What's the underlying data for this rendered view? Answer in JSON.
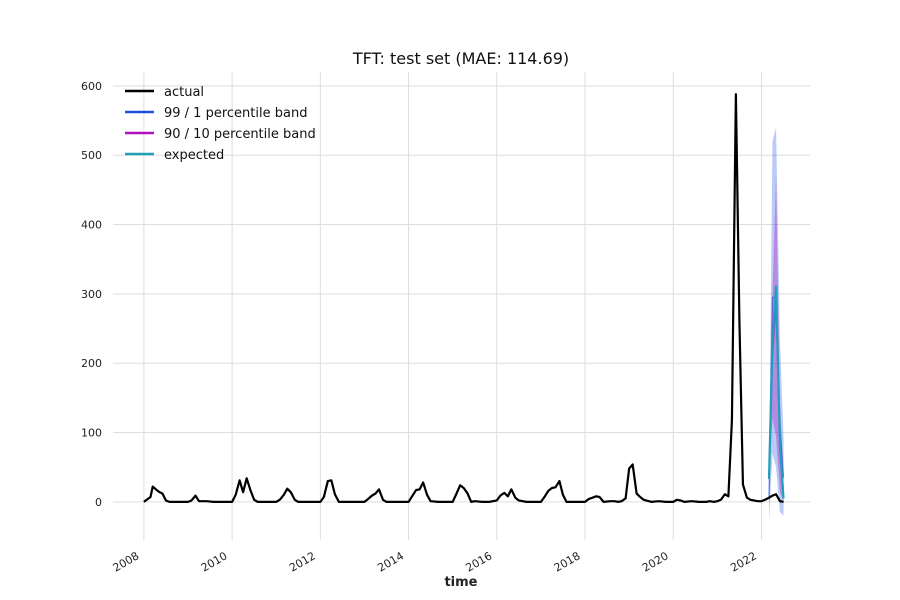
{
  "chart_data": {
    "type": "line",
    "title": "TFT: test set (MAE: 114.69)",
    "xlabel": "time",
    "ylabel": "",
    "xlim": [
      2007.3,
      2023.1
    ],
    "ylim": [
      -55,
      620
    ],
    "x_ticks": [
      {
        "value": 2008,
        "label": "2008"
      },
      {
        "value": 2010,
        "label": "2010"
      },
      {
        "value": 2012,
        "label": "2012"
      },
      {
        "value": 2014,
        "label": "2014"
      },
      {
        "value": 2016,
        "label": "2016"
      },
      {
        "value": 2018,
        "label": "2018"
      },
      {
        "value": 2020,
        "label": "2020"
      },
      {
        "value": 2022,
        "label": "2022"
      }
    ],
    "y_ticks": [
      {
        "value": 0,
        "label": "0"
      },
      {
        "value": 100,
        "label": "100"
      },
      {
        "value": 200,
        "label": "200"
      },
      {
        "value": 300,
        "label": "300"
      },
      {
        "value": 400,
        "label": "400"
      },
      {
        "value": 500,
        "label": "500"
      },
      {
        "value": 600,
        "label": "600"
      }
    ],
    "grid": true,
    "legend_position": "top-left",
    "legend": [
      {
        "label": "actual",
        "color": "#000000"
      },
      {
        "label": "99 / 1 percentile band",
        "color": "#1f4fe0"
      },
      {
        "label": "90 / 10 percentile band",
        "color": "#b010c0"
      },
      {
        "label": "expected",
        "color": "#20a0b8"
      }
    ],
    "series": [
      {
        "name": "actual",
        "color": "#000000",
        "points": [
          [
            2008.0,
            0
          ],
          [
            2008.15,
            7
          ],
          [
            2008.2,
            22
          ],
          [
            2008.33,
            15
          ],
          [
            2008.42,
            12
          ],
          [
            2008.5,
            2
          ],
          [
            2008.58,
            0
          ],
          [
            2008.75,
            0
          ],
          [
            2009.0,
            0
          ],
          [
            2009.08,
            2
          ],
          [
            2009.17,
            9
          ],
          [
            2009.25,
            1
          ],
          [
            2009.42,
            1
          ],
          [
            2009.58,
            0
          ],
          [
            2009.75,
            0
          ],
          [
            2010.0,
            0
          ],
          [
            2010.08,
            10
          ],
          [
            2010.17,
            31
          ],
          [
            2010.25,
            14
          ],
          [
            2010.33,
            34
          ],
          [
            2010.42,
            16
          ],
          [
            2010.5,
            3
          ],
          [
            2010.58,
            0
          ],
          [
            2010.75,
            0
          ],
          [
            2011.0,
            0
          ],
          [
            2011.08,
            3
          ],
          [
            2011.17,
            10
          ],
          [
            2011.25,
            19
          ],
          [
            2011.33,
            14
          ],
          [
            2011.42,
            3
          ],
          [
            2011.5,
            0
          ],
          [
            2011.67,
            0
          ],
          [
            2011.83,
            0
          ],
          [
            2012.0,
            0
          ],
          [
            2012.08,
            7
          ],
          [
            2012.17,
            30
          ],
          [
            2012.25,
            31
          ],
          [
            2012.33,
            11
          ],
          [
            2012.42,
            0
          ],
          [
            2012.58,
            0
          ],
          [
            2012.75,
            0
          ],
          [
            2013.0,
            0
          ],
          [
            2013.08,
            4
          ],
          [
            2013.17,
            9
          ],
          [
            2013.25,
            12
          ],
          [
            2013.33,
            18
          ],
          [
            2013.42,
            3
          ],
          [
            2013.5,
            0
          ],
          [
            2013.75,
            0
          ],
          [
            2014.0,
            0
          ],
          [
            2014.08,
            8
          ],
          [
            2014.17,
            17
          ],
          [
            2014.25,
            18
          ],
          [
            2014.33,
            28
          ],
          [
            2014.42,
            10
          ],
          [
            2014.5,
            1
          ],
          [
            2014.67,
            0
          ],
          [
            2014.83,
            0
          ],
          [
            2015.0,
            0
          ],
          [
            2015.08,
            11
          ],
          [
            2015.17,
            24
          ],
          [
            2015.25,
            20
          ],
          [
            2015.33,
            13
          ],
          [
            2015.42,
            0
          ],
          [
            2015.5,
            1
          ],
          [
            2015.67,
            0
          ],
          [
            2015.83,
            0
          ],
          [
            2016.0,
            2
          ],
          [
            2016.08,
            9
          ],
          [
            2016.17,
            13
          ],
          [
            2016.25,
            8
          ],
          [
            2016.33,
            18
          ],
          [
            2016.42,
            6
          ],
          [
            2016.5,
            2
          ],
          [
            2016.67,
            0
          ],
          [
            2016.83,
            0
          ],
          [
            2017.0,
            0
          ],
          [
            2017.08,
            7
          ],
          [
            2017.17,
            16
          ],
          [
            2017.25,
            20
          ],
          [
            2017.33,
            21
          ],
          [
            2017.42,
            30
          ],
          [
            2017.5,
            10
          ],
          [
            2017.58,
            0
          ],
          [
            2017.75,
            0
          ],
          [
            2018.0,
            0
          ],
          [
            2018.08,
            4
          ],
          [
            2018.17,
            6
          ],
          [
            2018.25,
            8
          ],
          [
            2018.33,
            7
          ],
          [
            2018.42,
            0
          ],
          [
            2018.58,
            1
          ],
          [
            2018.67,
            1
          ],
          [
            2018.75,
            0
          ],
          [
            2018.83,
            1
          ],
          [
            2018.92,
            5
          ],
          [
            2019.0,
            48
          ],
          [
            2019.08,
            54
          ],
          [
            2019.17,
            12
          ],
          [
            2019.25,
            7
          ],
          [
            2019.33,
            3
          ],
          [
            2019.5,
            0
          ],
          [
            2019.67,
            1
          ],
          [
            2019.83,
            0
          ],
          [
            2020.0,
            0
          ],
          [
            2020.08,
            3
          ],
          [
            2020.17,
            2
          ],
          [
            2020.25,
            0
          ],
          [
            2020.42,
            1
          ],
          [
            2020.58,
            0
          ],
          [
            2020.75,
            0
          ],
          [
            2020.83,
            1
          ],
          [
            2020.92,
            0
          ],
          [
            2021.0,
            1
          ],
          [
            2021.08,
            3
          ],
          [
            2021.17,
            11
          ],
          [
            2021.25,
            8
          ],
          [
            2021.33,
            118
          ],
          [
            2021.42,
            588
          ],
          [
            2021.5,
            260
          ],
          [
            2021.58,
            25
          ],
          [
            2021.67,
            6
          ],
          [
            2021.75,
            3
          ],
          [
            2021.92,
            1
          ],
          [
            2022.0,
            1
          ],
          [
            2022.08,
            3
          ],
          [
            2022.17,
            6
          ],
          [
            2022.25,
            9
          ],
          [
            2022.33,
            11
          ],
          [
            2022.42,
            1
          ],
          [
            2022.5,
            0
          ]
        ]
      },
      {
        "name": "99 / 1 percentile band",
        "color": "#1f4fe0",
        "x": [
          2022.17,
          2022.25,
          2022.33,
          2022.42,
          2022.5
        ],
        "lower": [
          -28,
          70,
          50,
          -15,
          -20
        ],
        "upper": [
          35,
          520,
          540,
          230,
          90
        ]
      },
      {
        "name": "90 / 10 percentile band",
        "color": "#b010c0",
        "x": [
          2022.17,
          2022.25,
          2022.33,
          2022.42,
          2022.5
        ],
        "lower": [
          28,
          120,
          95,
          15,
          0
        ],
        "upper": [
          38,
          300,
          470,
          140,
          30
        ]
      },
      {
        "name": "expected",
        "color": "#20a0b8",
        "x": [
          2022.17,
          2022.25,
          2022.33,
          2022.42,
          2022.5
        ],
        "values": [
          33,
          230,
          310,
          80,
          5
        ]
      }
    ]
  }
}
